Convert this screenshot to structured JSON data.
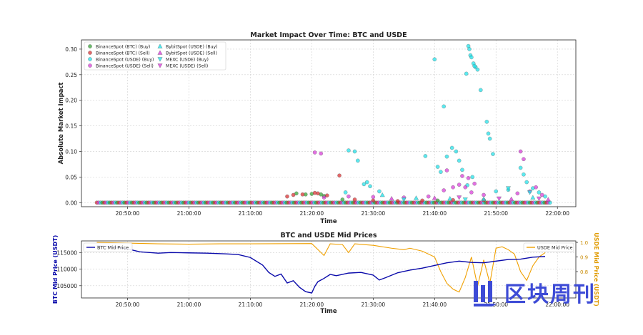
{
  "chart_data": [
    {
      "type": "scatter",
      "title": "Market Impact Over Time: BTC and USDE",
      "xlabel": "Time",
      "ylabel": "Absolute Market Impact",
      "x_ticks": [
        "20:50:00",
        "21:00:00",
        "21:10:00",
        "21:20:00",
        "21:30:00",
        "21:40:00",
        "21:50:00",
        "22:00:00"
      ],
      "y_ticks": [
        "0.00",
        "0.05",
        "0.10",
        "0.15",
        "0.20",
        "0.25",
        "0.30"
      ],
      "xlim": [
        "20:42:30",
        "22:03:00"
      ],
      "ylim": [
        -0.008,
        0.318
      ],
      "grid": true,
      "legend_position": "top-left",
      "series": [
        {
          "name": "BinanceSpot (BTC) (Buy)",
          "color": "#2ca02c",
          "marker": "circle",
          "points": [
            [
              "21:17:30",
              0.018
            ],
            [
              "21:19:00",
              0.016
            ],
            [
              "21:20:00",
              0.017
            ],
            [
              "21:21:30",
              0.016
            ],
            [
              "21:22:00",
              0.013
            ],
            [
              "21:25:00",
              0.006
            ],
            [
              "21:40:30",
              0.004
            ]
          ]
        },
        {
          "name": "BinanceSpot (BTC) (Sell)",
          "color": "#d62728",
          "marker": "circle",
          "points": [
            [
              "21:16:00",
              0.012
            ],
            [
              "21:17:00",
              0.015
            ],
            [
              "21:18:30",
              0.016
            ],
            [
              "21:20:30",
              0.019
            ],
            [
              "21:21:00",
              0.018
            ],
            [
              "21:22:30",
              0.014
            ],
            [
              "21:24:30",
              0.053
            ],
            [
              "21:27:00",
              0.006
            ],
            [
              "21:30:00",
              0.004
            ],
            [
              "21:34:00",
              0.003
            ],
            [
              "21:38:00",
              0.004
            ],
            [
              "21:43:00",
              0.005
            ],
            [
              "21:48:00",
              0.005
            ]
          ]
        },
        {
          "name": "BinanceSpot (USDE) (Buy)",
          "color": "#17e0e8",
          "marker": "circle",
          "points": [
            [
              "21:40:00",
              0.28
            ],
            [
              "21:41:30",
              0.188
            ],
            [
              "21:45:30",
              0.306
            ],
            [
              "21:45:40",
              0.3
            ],
            [
              "21:45:50",
              0.288
            ],
            [
              "21:46:00",
              0.284
            ],
            [
              "21:46:20",
              0.272
            ],
            [
              "21:46:40",
              0.265
            ],
            [
              "21:45:10",
              0.252
            ],
            [
              "21:47:00",
              0.26
            ],
            [
              "21:47:30",
              0.22
            ],
            [
              "21:46:30",
              0.267
            ],
            [
              "21:48:30",
              0.158
            ],
            [
              "21:48:45",
              0.135
            ],
            [
              "21:49:00",
              0.125
            ],
            [
              "21:49:30",
              0.095
            ],
            [
              "21:42:50",
              0.107
            ],
            [
              "21:43:30",
              0.1
            ],
            [
              "21:42:00",
              0.09
            ],
            [
              "21:44:00",
              0.082
            ],
            [
              "21:44:30",
              0.064
            ],
            [
              "21:40:30",
              0.07
            ],
            [
              "21:41:00",
              0.06
            ],
            [
              "21:26:00",
              0.102
            ],
            [
              "21:27:00",
              0.1
            ],
            [
              "21:27:30",
              0.082
            ],
            [
              "21:29:00",
              0.04
            ],
            [
              "21:28:30",
              0.036
            ],
            [
              "21:29:30",
              0.032
            ],
            [
              "21:31:00",
              0.022
            ],
            [
              "21:25:30",
              0.02
            ],
            [
              "21:38:30",
              0.091
            ],
            [
              "21:54:00",
              0.068
            ],
            [
              "21:54:30",
              0.055
            ],
            [
              "21:55:00",
              0.04
            ],
            [
              "21:56:00",
              0.028
            ],
            [
              "21:57:00",
              0.02
            ],
            [
              "21:58:00",
              0.012
            ],
            [
              "21:52:00",
              0.025
            ],
            [
              "21:50:00",
              0.022
            ],
            [
              "21:46:10",
              0.05
            ],
            [
              "21:45:20",
              0.034
            ]
          ]
        },
        {
          "name": "BinanceSpot (USDE) (Sell)",
          "color": "#d633d6",
          "marker": "circle",
          "points": [
            [
              "21:20:30",
              0.098
            ],
            [
              "21:21:30",
              0.096
            ],
            [
              "21:42:00",
              0.063
            ],
            [
              "21:44:30",
              0.052
            ],
            [
              "21:45:30",
              0.048
            ],
            [
              "21:46:30",
              0.037
            ],
            [
              "21:44:00",
              0.035
            ],
            [
              "21:43:00",
              0.03
            ],
            [
              "21:45:00",
              0.03
            ],
            [
              "21:41:30",
              0.024
            ],
            [
              "21:46:00",
              0.02
            ],
            [
              "21:54:00",
              0.1
            ],
            [
              "21:54:30",
              0.085
            ],
            [
              "21:53:30",
              0.018
            ],
            [
              "21:55:30",
              0.022
            ],
            [
              "21:56:30",
              0.03
            ],
            [
              "21:57:30",
              0.015
            ],
            [
              "21:48:00",
              0.015
            ],
            [
              "21:39:00",
              0.012
            ],
            [
              "21:35:00",
              0.01
            ],
            [
              "21:30:00",
              0.011
            ],
            [
              "21:26:00",
              0.012
            ],
            [
              "21:22:00",
              0.01
            ]
          ]
        },
        {
          "name": "BybitSpot (USDE) (Buy)",
          "color": "#17e0e8",
          "marker": "triangle-up",
          "points": [
            [
              "21:31:30",
              0.015
            ],
            [
              "21:37:00",
              0.009
            ],
            [
              "21:42:30",
              0.008
            ],
            [
              "21:48:00",
              0.007
            ],
            [
              "21:56:00",
              0.01
            ]
          ]
        },
        {
          "name": "BybitSpot (USDE) (Sell)",
          "color": "#d633d6",
          "marker": "triangle-up",
          "points": [
            [
              "21:33:00",
              0.008
            ],
            [
              "21:40:00",
              0.009
            ],
            [
              "21:52:30",
              0.007
            ],
            [
              "21:58:30",
              0.006
            ]
          ]
        },
        {
          "name": "MEXC (USDE) (Buy)",
          "color": "#17e0e8",
          "marker": "triangle-down",
          "points": [
            [
              "21:52:00",
              0.028
            ],
            [
              "21:55:30",
              0.02
            ],
            [
              "21:35:00",
              0.006
            ],
            [
              "21:45:00",
              0.006
            ]
          ]
        },
        {
          "name": "MEXC (USDE) (Sell)",
          "color": "#d633d6",
          "marker": "triangle-down",
          "points": [
            [
              "21:44:00",
              0.01
            ],
            [
              "21:50:30",
              0.008
            ],
            [
              "21:57:00",
              0.008
            ]
          ]
        }
      ],
      "baseline": {
        "start": "20:45:00",
        "end": "21:59:00",
        "value": 0.0
      }
    },
    {
      "type": "line",
      "title": "BTC and USDE Mid Prices",
      "xlabel": "Time",
      "ylabel": "BTC Mid Price (USDT)",
      "y2label": "USDE Mid Price (USDT)",
      "x_ticks": [
        "20:50:00",
        "21:00:00",
        "21:10:00",
        "21:20:00",
        "21:30:00",
        "21:40:00",
        "21:50:00",
        "22:00:00"
      ],
      "y_ticks": [
        "105000",
        "110000",
        "115000"
      ],
      "y2_ticks": [
        "0.8",
        "0.9",
        "1.0"
      ],
      "xlim": [
        "20:42:30",
        "22:03:00"
      ],
      "ylim": [
        101300,
        118500
      ],
      "y2lim": [
        0.62,
        1.01
      ],
      "grid": true,
      "series": [
        {
          "name": "BTC Mid Price",
          "axis": "left",
          "color": "#0a0aaa",
          "legend_position": "top-left",
          "points": [
            [
              "20:45:00",
              117100
            ],
            [
              "20:48:00",
              116600
            ],
            [
              "20:50:00",
              116100
            ],
            [
              "20:52:00",
              115200
            ],
            [
              "20:55:00",
              114800
            ],
            [
              "20:57:00",
              115000
            ],
            [
              "21:00:00",
              114900
            ],
            [
              "21:03:00",
              114800
            ],
            [
              "21:06:00",
              114600
            ],
            [
              "21:08:00",
              114400
            ],
            [
              "21:10:00",
              113500
            ],
            [
              "21:12:00",
              111200
            ],
            [
              "21:13:00",
              109000
            ],
            [
              "21:14:00",
              107800
            ],
            [
              "21:15:00",
              108500
            ],
            [
              "21:16:00",
              105800
            ],
            [
              "21:17:00",
              106500
            ],
            [
              "21:18:00",
              104500
            ],
            [
              "21:19:00",
              103200
            ],
            [
              "21:20:00",
              102800
            ],
            [
              "21:20:30",
              104800
            ],
            [
              "21:21:00",
              106200
            ],
            [
              "21:22:00",
              107200
            ],
            [
              "21:23:00",
              108400
            ],
            [
              "21:24:00",
              108000
            ],
            [
              "21:26:00",
              108800
            ],
            [
              "21:28:00",
              109000
            ],
            [
              "21:30:00",
              108200
            ],
            [
              "21:31:00",
              106700
            ],
            [
              "21:32:00",
              107400
            ],
            [
              "21:34:00",
              108900
            ],
            [
              "21:36:00",
              109700
            ],
            [
              "21:38:00",
              110300
            ],
            [
              "21:40:00",
              111100
            ],
            [
              "21:42:00",
              111900
            ],
            [
              "21:44:00",
              112400
            ],
            [
              "21:46:00",
              112000
            ],
            [
              "21:48:00",
              111900
            ],
            [
              "21:50:00",
              112400
            ],
            [
              "21:52:00",
              112900
            ],
            [
              "21:54:00",
              113000
            ],
            [
              "21:56:00",
              113600
            ],
            [
              "21:58:00",
              113800
            ]
          ]
        },
        {
          "name": "USDE Mid Price",
          "axis": "right",
          "color": "#f0a000",
          "legend_position": "top-right",
          "points": [
            [
              "20:45:00",
              1.0
            ],
            [
              "20:50:00",
              0.995
            ],
            [
              "20:55:00",
              0.99
            ],
            [
              "21:00:00",
              0.988
            ],
            [
              "21:05:00",
              0.99
            ],
            [
              "21:10:00",
              0.99
            ],
            [
              "21:20:00",
              0.992
            ],
            [
              "21:22:00",
              0.91
            ],
            [
              "21:23:00",
              0.99
            ],
            [
              "21:25:00",
              0.985
            ],
            [
              "21:26:00",
              0.93
            ],
            [
              "21:27:00",
              0.99
            ],
            [
              "21:30:00",
              0.98
            ],
            [
              "21:33:00",
              0.96
            ],
            [
              "21:35:00",
              0.95
            ],
            [
              "21:36:00",
              0.96
            ],
            [
              "21:38:00",
              0.94
            ],
            [
              "21:40:00",
              0.9
            ],
            [
              "21:41:00",
              0.8
            ],
            [
              "21:42:00",
              0.72
            ],
            [
              "21:43:00",
              0.68
            ],
            [
              "21:44:00",
              0.66
            ],
            [
              "21:45:00",
              0.76
            ],
            [
              "21:46:00",
              0.9
            ],
            [
              "21:47:00",
              0.7
            ],
            [
              "21:48:00",
              0.88
            ],
            [
              "21:49:00",
              0.72
            ],
            [
              "21:50:00",
              0.96
            ],
            [
              "21:51:00",
              0.97
            ],
            [
              "21:52:00",
              0.95
            ],
            [
              "21:53:00",
              0.92
            ],
            [
              "21:54:00",
              0.8
            ],
            [
              "21:55:00",
              0.74
            ],
            [
              "21:56:00",
              0.84
            ],
            [
              "21:57:00",
              0.9
            ],
            [
              "21:58:00",
              0.93
            ]
          ]
        }
      ]
    }
  ],
  "watermark": {
    "text": "区块周刊",
    "color": "#3d4bd6"
  }
}
